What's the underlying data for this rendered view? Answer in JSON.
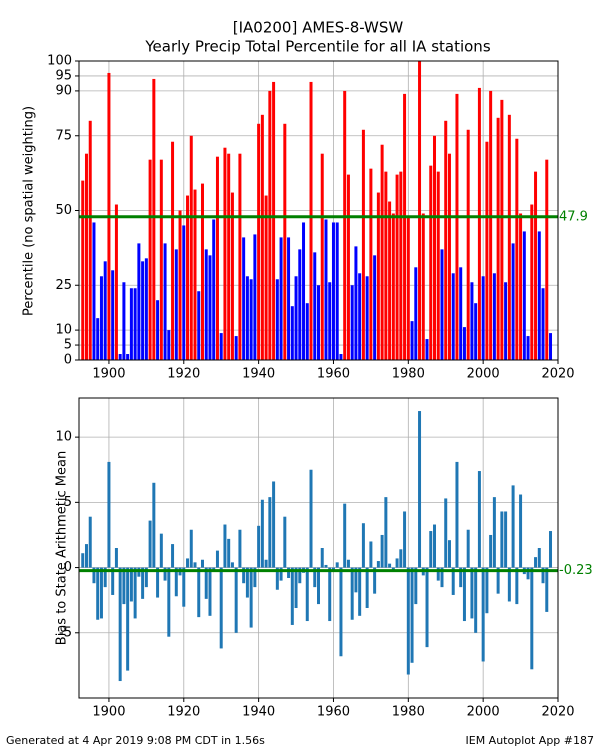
{
  "chart_data": [
    {
      "type": "bar",
      "title": "[IA0200] AMES-8-WSW",
      "subtitle": "Yearly Precip Total Percentile for all IA stations",
      "ylabel": "Percentile (no spatial weighting)",
      "x": [
        1893,
        1894,
        1895,
        1896,
        1897,
        1898,
        1899,
        1900,
        1901,
        1902,
        1903,
        1904,
        1905,
        1906,
        1907,
        1908,
        1909,
        1910,
        1911,
        1912,
        1913,
        1914,
        1915,
        1916,
        1917,
        1918,
        1919,
        1920,
        1921,
        1922,
        1923,
        1924,
        1925,
        1926,
        1927,
        1928,
        1929,
        1930,
        1931,
        1932,
        1933,
        1934,
        1935,
        1936,
        1937,
        1938,
        1939,
        1940,
        1941,
        1942,
        1943,
        1944,
        1945,
        1946,
        1947,
        1948,
        1949,
        1950,
        1951,
        1952,
        1953,
        1954,
        1955,
        1956,
        1957,
        1958,
        1959,
        1960,
        1961,
        1962,
        1963,
        1964,
        1965,
        1966,
        1967,
        1968,
        1969,
        1970,
        1971,
        1972,
        1973,
        1974,
        1975,
        1976,
        1977,
        1978,
        1979,
        1980,
        1981,
        1982,
        1983,
        1984,
        1985,
        1986,
        1987,
        1988,
        1989,
        1990,
        1991,
        1992,
        1993,
        1994,
        1995,
        1996,
        1997,
        1998,
        1999,
        2000,
        2001,
        2002,
        2003,
        2004,
        2005,
        2006,
        2007,
        2008,
        2009,
        2010,
        2011,
        2012,
        2013,
        2014,
        2015,
        2016,
        2017,
        2018
      ],
      "values": [
        60,
        69,
        80,
        46,
        14,
        28,
        33,
        96,
        30,
        52,
        2,
        26,
        2,
        24,
        24,
        39,
        33,
        34,
        67,
        94,
        20,
        67,
        39,
        10,
        73,
        37,
        50,
        45,
        55,
        75,
        57,
        23,
        59,
        37,
        35,
        47,
        68,
        9,
        71,
        69,
        56,
        8,
        69,
        41,
        28,
        27,
        42,
        79,
        82,
        55,
        90,
        93,
        27,
        41,
        79,
        41,
        18,
        28,
        37,
        46,
        19,
        93,
        36,
        25,
        69,
        47,
        26,
        46,
        46,
        2,
        90,
        62,
        25,
        38,
        29,
        77,
        28,
        64,
        35,
        56,
        72,
        63,
        53,
        49,
        62,
        63,
        89,
        48,
        13,
        31,
        100,
        49,
        7,
        65,
        75,
        63,
        37,
        80,
        69,
        29,
        89,
        31,
        11,
        77,
        26,
        19,
        91,
        28,
        73,
        90,
        29,
        81,
        87,
        26,
        82,
        39,
        74,
        49,
        43,
        8,
        52,
        63,
        43,
        24,
        67,
        9
      ],
      "color_above": "#ff0000",
      "color_below": "#0000ff",
      "mean": 47.9,
      "mean_color": "#008000",
      "xlim": [
        1892,
        2020
      ],
      "xticks": [
        1900,
        1920,
        1940,
        1960,
        1980,
        2000,
        2020
      ],
      "ylim": [
        0,
        100
      ],
      "yticks": [
        0,
        5,
        10,
        25,
        50,
        75,
        90,
        95,
        100
      ],
      "grid": true
    },
    {
      "type": "bar",
      "ylabel": "Bias to State Arithmetic Mean",
      "x": [
        1893,
        1894,
        1895,
        1896,
        1897,
        1898,
        1899,
        1900,
        1901,
        1902,
        1903,
        1904,
        1905,
        1906,
        1907,
        1908,
        1909,
        1910,
        1911,
        1912,
        1913,
        1914,
        1915,
        1916,
        1917,
        1918,
        1919,
        1920,
        1921,
        1922,
        1923,
        1924,
        1925,
        1926,
        1927,
        1928,
        1929,
        1930,
        1931,
        1932,
        1933,
        1934,
        1935,
        1936,
        1937,
        1938,
        1939,
        1940,
        1941,
        1942,
        1943,
        1944,
        1945,
        1946,
        1947,
        1948,
        1949,
        1950,
        1951,
        1952,
        1953,
        1954,
        1955,
        1956,
        1957,
        1958,
        1959,
        1960,
        1961,
        1962,
        1963,
        1964,
        1965,
        1966,
        1967,
        1968,
        1969,
        1970,
        1971,
        1972,
        1973,
        1974,
        1975,
        1976,
        1977,
        1978,
        1979,
        1980,
        1981,
        1982,
        1983,
        1984,
        1985,
        1986,
        1987,
        1988,
        1989,
        1990,
        1991,
        1992,
        1993,
        1994,
        1995,
        1996,
        1997,
        1998,
        1999,
        2000,
        2001,
        2002,
        2003,
        2004,
        2005,
        2006,
        2007,
        2008,
        2009,
        2010,
        2011,
        2012,
        2013,
        2014,
        2015,
        2016,
        2017,
        2018
      ],
      "values": [
        1.1,
        1.8,
        3.9,
        -1.2,
        -4.0,
        -3.9,
        -1.5,
        8.1,
        -2.1,
        1.5,
        -8.7,
        -2.8,
        -7.9,
        -2.6,
        -3.9,
        -0.7,
        -2.4,
        -1.5,
        3.6,
        6.5,
        -2.3,
        2.6,
        -1.0,
        -5.3,
        1.8,
        -2.2,
        -0.6,
        -3.0,
        0.7,
        2.9,
        0.4,
        -3.8,
        0.6,
        -2.4,
        -3.7,
        -0.2,
        1.3,
        -6.2,
        3.3,
        2.2,
        0.4,
        -5.0,
        2.9,
        -1.2,
        -2.3,
        -4.6,
        -1.5,
        3.2,
        5.2,
        0.6,
        5.4,
        6.6,
        -1.7,
        -1.0,
        3.9,
        -0.8,
        -4.4,
        -3.1,
        -1.2,
        -0.4,
        -4.1,
        7.5,
        -1.5,
        -2.8,
        1.5,
        0.2,
        -4.1,
        -0.3,
        0.4,
        -6.8,
        4.9,
        0.6,
        -4.0,
        -1.9,
        -3.7,
        3.4,
        -3.1,
        2.0,
        -2.0,
        0.5,
        2.5,
        5.4,
        0.3,
        -0.3,
        0.7,
        1.4,
        4.3,
        -8.2,
        -7.3,
        -2.8,
        12.0,
        -0.6,
        -6.1,
        2.8,
        3.3,
        -1.0,
        -1.5,
        5.3,
        2.1,
        -2.1,
        8.1,
        -1.5,
        -4.1,
        2.9,
        -3.9,
        -5.0,
        7.4,
        -7.2,
        -3.5,
        2.5,
        5.4,
        -2.0,
        4.3,
        4.3,
        -2.6,
        6.3,
        -2.8,
        5.6,
        -0.5,
        -0.9,
        -7.8,
        0.8,
        1.5,
        -1.2,
        -3.4,
        2.8
      ],
      "color": "#1f77b4",
      "mean": -0.23,
      "mean_color": "#008000",
      "xlim": [
        1892,
        2020
      ],
      "xticks": [
        1900,
        1920,
        1940,
        1960,
        1980,
        2000,
        2020
      ],
      "ylim": [
        -10,
        13
      ],
      "yticks": [
        -5,
        0,
        5,
        10
      ],
      "grid": true
    }
  ],
  "footer": {
    "left": "Generated at 4 Apr 2019 9:08 PM CDT in 1.56s",
    "right": "IEM Autoplot App #187"
  }
}
